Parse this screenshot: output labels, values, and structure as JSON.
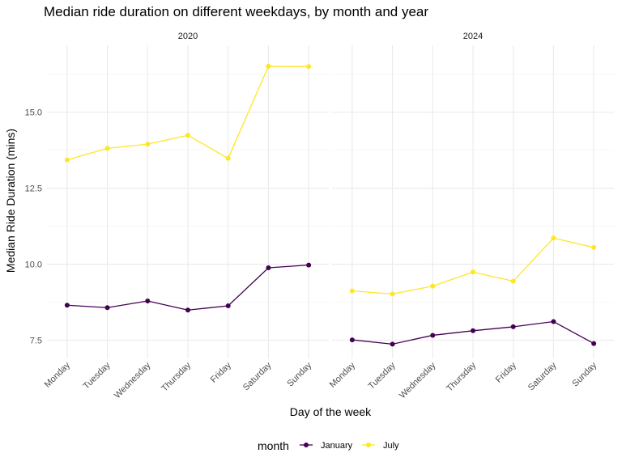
{
  "chart_data": {
    "type": "line",
    "title": "Median ride duration on different weekdays, by month and year",
    "xlabel": "Day of the week",
    "ylabel": "Median Ride Duration (mins)",
    "categories": [
      "Monday",
      "Tuesday",
      "Wednesday",
      "Thursday",
      "Friday",
      "Saturday",
      "Sunday"
    ],
    "yticks": [
      7.5,
      10.0,
      12.5,
      15.0
    ],
    "ytick_labels": [
      "7.5",
      "10.0",
      "12.5",
      "15.0"
    ],
    "ylim": [
      6.9,
      17.2
    ],
    "grid": true,
    "legend": {
      "title": "month",
      "placement": "bottom"
    },
    "panels": [
      {
        "label": "2020",
        "series": [
          {
            "name": "January",
            "color": "#440154",
            "values": [
              8.65,
              8.57,
              8.79,
              8.49,
              8.63,
              9.88,
              9.97
            ]
          },
          {
            "name": "July",
            "color": "#FDE725",
            "values": [
              13.43,
              13.81,
              13.95,
              14.24,
              13.48,
              16.51,
              16.5
            ]
          }
        ]
      },
      {
        "label": "2024",
        "series": [
          {
            "name": "January",
            "color": "#440154",
            "values": [
              7.51,
              7.37,
              7.66,
              7.81,
              7.94,
              8.11,
              7.39
            ]
          },
          {
            "name": "July",
            "color": "#FDE725",
            "values": [
              9.12,
              9.02,
              9.28,
              9.74,
              9.44,
              10.86,
              10.55
            ]
          }
        ]
      }
    ]
  }
}
